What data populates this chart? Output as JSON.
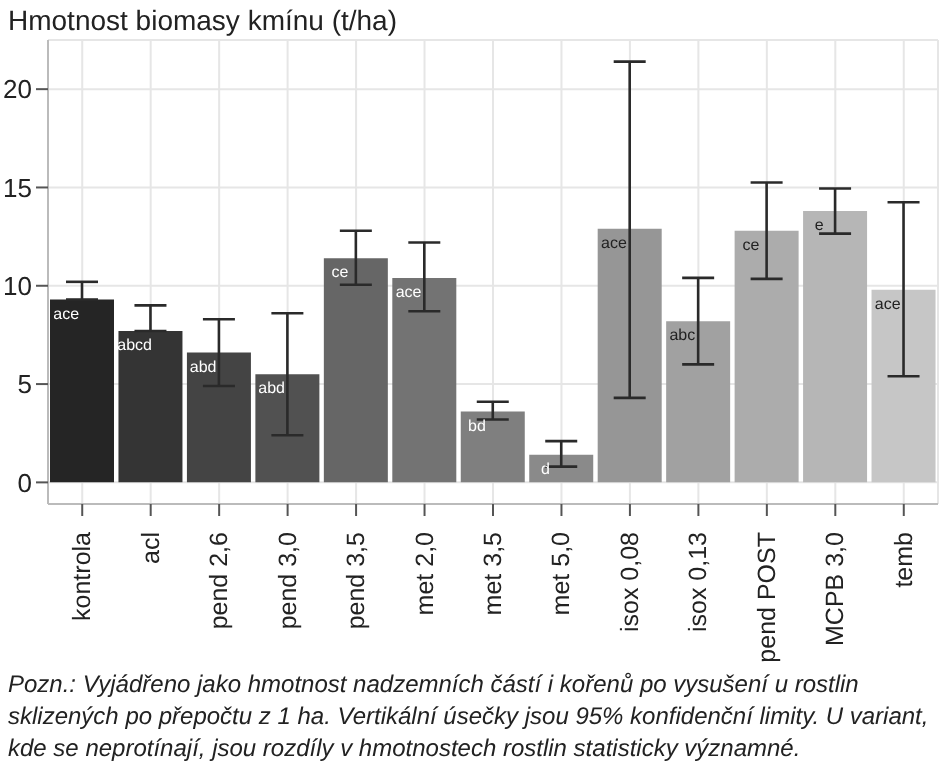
{
  "chart_data": {
    "type": "bar",
    "title": "Hmotnost biomasy kmínu (t/ha)",
    "categories": [
      "kontrola",
      "acl",
      "pend 2,6",
      "pend 3,0",
      "pend 3,5",
      "met 2,0",
      "met 3,5",
      "met 5,0",
      "isox 0,08",
      "isox 0,13",
      "pend POST",
      "MCPB 3,0",
      "temb"
    ],
    "values": [
      9.3,
      7.7,
      6.6,
      5.5,
      11.4,
      10.4,
      3.6,
      1.4,
      12.9,
      8.2,
      12.8,
      13.8,
      9.8
    ],
    "value_labels": [
      "ace",
      "abcd",
      "abd",
      "abd",
      "ce",
      "ace",
      "bd",
      "d",
      "ace",
      "abc",
      "ce",
      "e",
      "ace"
    ],
    "errors": [
      [
        9.3,
        10.2
      ],
      [
        7.7,
        9.0
      ],
      [
        4.9,
        8.3
      ],
      [
        2.4,
        8.6
      ],
      [
        10.05,
        12.8
      ],
      [
        8.7,
        12.2
      ],
      [
        3.2,
        4.1
      ],
      [
        0.8,
        2.1
      ],
      [
        4.3,
        21.4
      ],
      [
        6.0,
        10.4
      ],
      [
        10.35,
        15.25
      ],
      [
        12.65,
        14.95
      ],
      [
        5.4,
        14.25
      ]
    ],
    "colors": [
      "#252525",
      "#343434",
      "#444444",
      "#515151",
      "#666666",
      "#737373",
      "#7f7f7f",
      "#8a8a8a",
      "#969696",
      "#a1a1a1",
      "#acacac",
      "#b6b6b6",
      "#c6c6c6"
    ],
    "ylim": [
      -1.1,
      22.5
    ],
    "yticks": [
      0,
      5,
      10,
      15,
      20
    ],
    "grid": true,
    "annotations": [
      "Pozn.: Vyjádřeno jako hmotnost nadzemních částí i kořenů po vysušení u rostlin sklizených po přepočtu z 1 ha. Vertikální úsečky jsou 95% konfidenční limity. U variant, kde se neprotínají, jsou rozdíly v hmotnostech rostlin statisticky významné."
    ]
  }
}
